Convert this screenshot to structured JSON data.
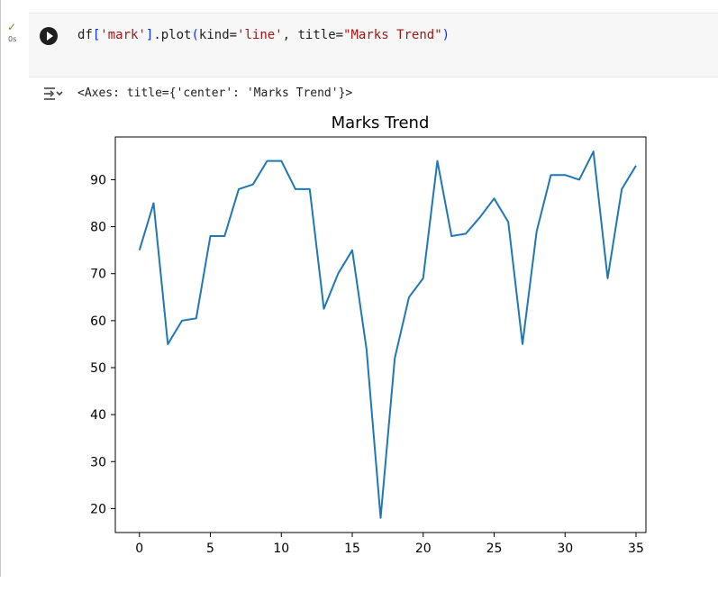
{
  "cell": {
    "status_check": "✓",
    "exec_time": "0s",
    "code_segments": [
      {
        "text": "df",
        "cls": ""
      },
      {
        "text": "[",
        "cls": "tk-brk"
      },
      {
        "text": "'mark'",
        "cls": "tk-str"
      },
      {
        "text": "]",
        "cls": "tk-brk"
      },
      {
        "text": ".plot",
        "cls": ""
      },
      {
        "text": "(",
        "cls": "tk-brk"
      },
      {
        "text": "kind=",
        "cls": ""
      },
      {
        "text": "'line'",
        "cls": "tk-str"
      },
      {
        "text": ", title=",
        "cls": ""
      },
      {
        "text": "\"Marks Trend\"",
        "cls": "tk-str"
      },
      {
        "text": ")",
        "cls": "tk-brk"
      }
    ]
  },
  "output": {
    "text": "<Axes: title={'center': 'Marks Trend'}>"
  },
  "chart_data": {
    "type": "line",
    "title": "Marks Trend",
    "xlabel": "",
    "ylabel": "",
    "xlim": [
      -1.7,
      35.7
    ],
    "ylim": [
      14.9,
      99.1
    ],
    "xticks": [
      0,
      5,
      10,
      15,
      20,
      25,
      30,
      35
    ],
    "yticks": [
      20,
      30,
      40,
      50,
      60,
      70,
      80,
      90
    ],
    "grid": false,
    "color": "#1f77b4",
    "x": [
      0,
      1,
      2,
      3,
      4,
      5,
      6,
      7,
      8,
      9,
      10,
      11,
      12,
      13,
      14,
      15,
      16,
      17,
      18,
      19,
      20,
      21,
      22,
      23,
      24,
      25,
      26,
      27,
      28,
      29,
      30,
      31,
      32,
      33,
      34,
      35
    ],
    "series": [
      {
        "values": [
          75,
          85,
          55,
          60,
          60.5,
          78,
          78,
          88,
          89,
          94,
          94,
          88,
          88,
          62.5,
          70,
          75,
          54,
          18,
          52,
          65,
          69,
          94,
          78,
          78.5,
          82,
          86,
          81,
          55,
          79,
          91,
          91,
          90,
          96,
          69,
          88,
          93
        ]
      }
    ]
  }
}
